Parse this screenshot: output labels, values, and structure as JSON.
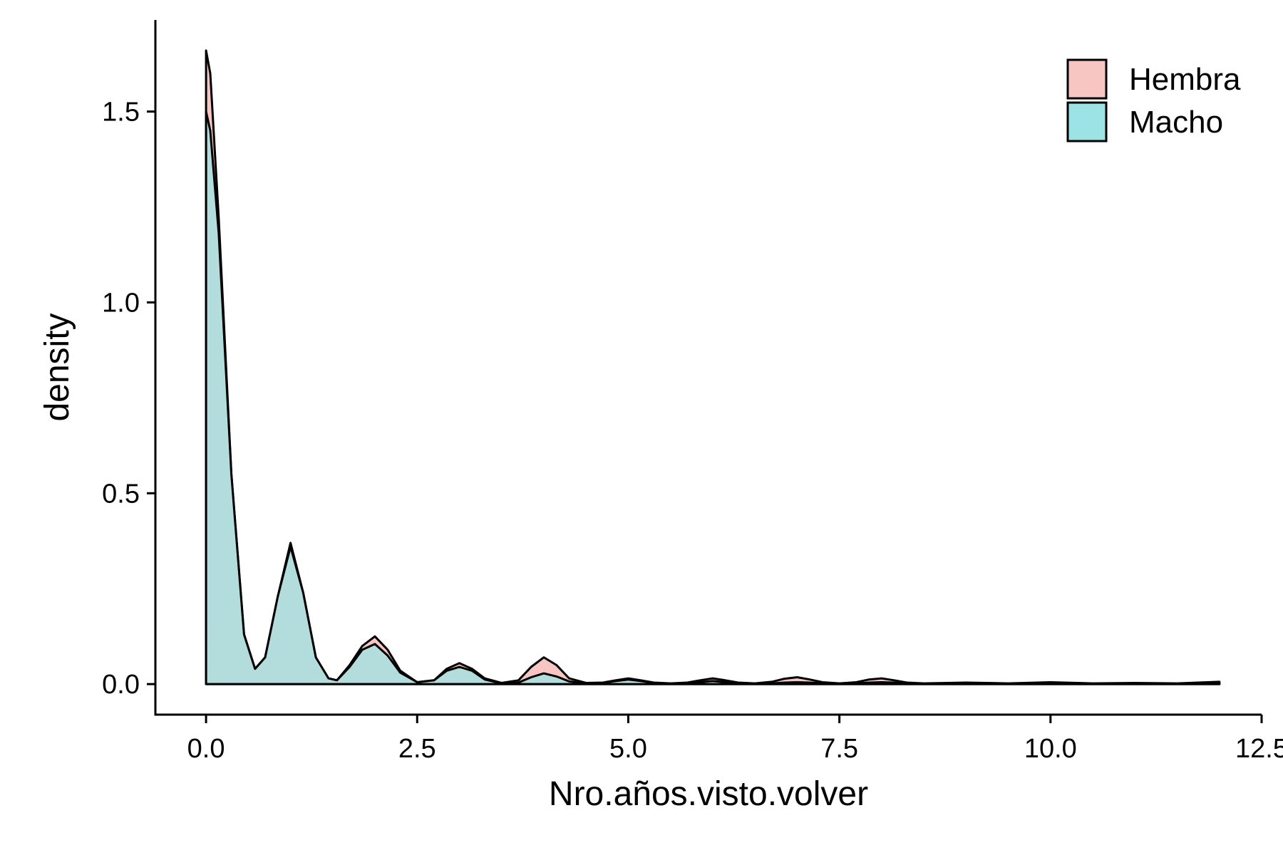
{
  "chart_data": {
    "type": "area",
    "title": "",
    "xlabel": "Nro.años.visto.volver",
    "ylabel": "density",
    "xlim": [
      -0.6,
      12.5
    ],
    "ylim": [
      -0.08,
      1.74
    ],
    "x_ticks": [
      {
        "value": 0,
        "label": "0.0"
      },
      {
        "value": 2.5,
        "label": "2.5"
      },
      {
        "value": 5,
        "label": "5.0"
      },
      {
        "value": 7.5,
        "label": "7.5"
      },
      {
        "value": 10,
        "label": "10.0"
      },
      {
        "value": 12.5,
        "label": "12.5"
      }
    ],
    "y_ticks": [
      {
        "value": 0,
        "label": "0.0"
      },
      {
        "value": 0.5,
        "label": "0.5"
      },
      {
        "value": 1,
        "label": "1.0"
      },
      {
        "value": 1.5,
        "label": "1.5"
      }
    ],
    "grid": false,
    "legend_position": "top-right",
    "series": [
      {
        "name": "Hembra",
        "color": "#F8766D",
        "fill_color": "#F8C6C2",
        "x": [
          0,
          0.05,
          0.15,
          0.3,
          0.45,
          0.58,
          0.7,
          0.85,
          1.0,
          1.15,
          1.3,
          1.45,
          1.55,
          1.7,
          1.85,
          2.0,
          2.15,
          2.3,
          2.5,
          2.7,
          2.85,
          3.0,
          3.15,
          3.3,
          3.5,
          3.7,
          3.85,
          4.0,
          4.15,
          4.3,
          4.5,
          4.7,
          4.85,
          5.0,
          5.15,
          5.3,
          5.5,
          5.7,
          5.85,
          6.0,
          6.15,
          6.3,
          6.5,
          6.7,
          6.85,
          7.0,
          7.15,
          7.3,
          7.5,
          7.7,
          7.85,
          8.0,
          8.15,
          8.3,
          8.5,
          9.0,
          9.5,
          10.0,
          10.5,
          11.0,
          11.5,
          12.0
        ],
        "y": [
          1.66,
          1.6,
          1.22,
          0.55,
          0.13,
          0.04,
          0.07,
          0.23,
          0.37,
          0.24,
          0.07,
          0.015,
          0.01,
          0.05,
          0.1,
          0.125,
          0.09,
          0.035,
          0.005,
          0.01,
          0.04,
          0.055,
          0.04,
          0.015,
          0.003,
          0.01,
          0.045,
          0.07,
          0.05,
          0.015,
          0.003,
          0.004,
          0.01,
          0.015,
          0.01,
          0.004,
          0.002,
          0.004,
          0.01,
          0.015,
          0.01,
          0.004,
          0.002,
          0.006,
          0.014,
          0.018,
          0.012,
          0.005,
          0.002,
          0.005,
          0.012,
          0.015,
          0.01,
          0.004,
          0.002,
          0.004,
          0.002,
          0.005,
          0.002,
          0.003,
          0.002,
          0.006
        ]
      },
      {
        "name": "Macho",
        "color": "#00BFC4",
        "fill_color": "#9CE3E5",
        "x": [
          0,
          0.05,
          0.15,
          0.3,
          0.45,
          0.58,
          0.7,
          0.85,
          1.0,
          1.15,
          1.3,
          1.45,
          1.55,
          1.7,
          1.85,
          2.0,
          2.15,
          2.3,
          2.5,
          2.7,
          2.85,
          3.0,
          3.15,
          3.3,
          3.5,
          3.7,
          3.85,
          4.0,
          4.15,
          4.3,
          4.5,
          4.7,
          4.85,
          5.0,
          5.15,
          5.3,
          5.5,
          5.7,
          5.85,
          6.0,
          6.15,
          6.3,
          6.5,
          6.7,
          6.85,
          7.0,
          7.15,
          7.3,
          7.5,
          7.7,
          7.85,
          8.0,
          8.15,
          8.3,
          8.5,
          9.0,
          9.5,
          10.0,
          10.5,
          11.0,
          11.5,
          12.0
        ],
        "y": [
          1.5,
          1.45,
          1.18,
          0.55,
          0.13,
          0.04,
          0.07,
          0.23,
          0.36,
          0.24,
          0.07,
          0.015,
          0.01,
          0.045,
          0.09,
          0.105,
          0.075,
          0.03,
          0.005,
          0.01,
          0.035,
          0.045,
          0.035,
          0.012,
          0.002,
          0.004,
          0.018,
          0.028,
          0.02,
          0.007,
          0.002,
          0.003,
          0.008,
          0.012,
          0.008,
          0.003,
          0.001,
          0.002,
          0.005,
          0.008,
          0.005,
          0.002,
          0.001,
          0.002,
          0.004,
          0.005,
          0.004,
          0.002,
          0.001,
          0.002,
          0.004,
          0.005,
          0.004,
          0.002,
          0.001,
          0.002,
          0.001,
          0.003,
          0.001,
          0.002,
          0.001,
          0.004
        ]
      }
    ]
  }
}
